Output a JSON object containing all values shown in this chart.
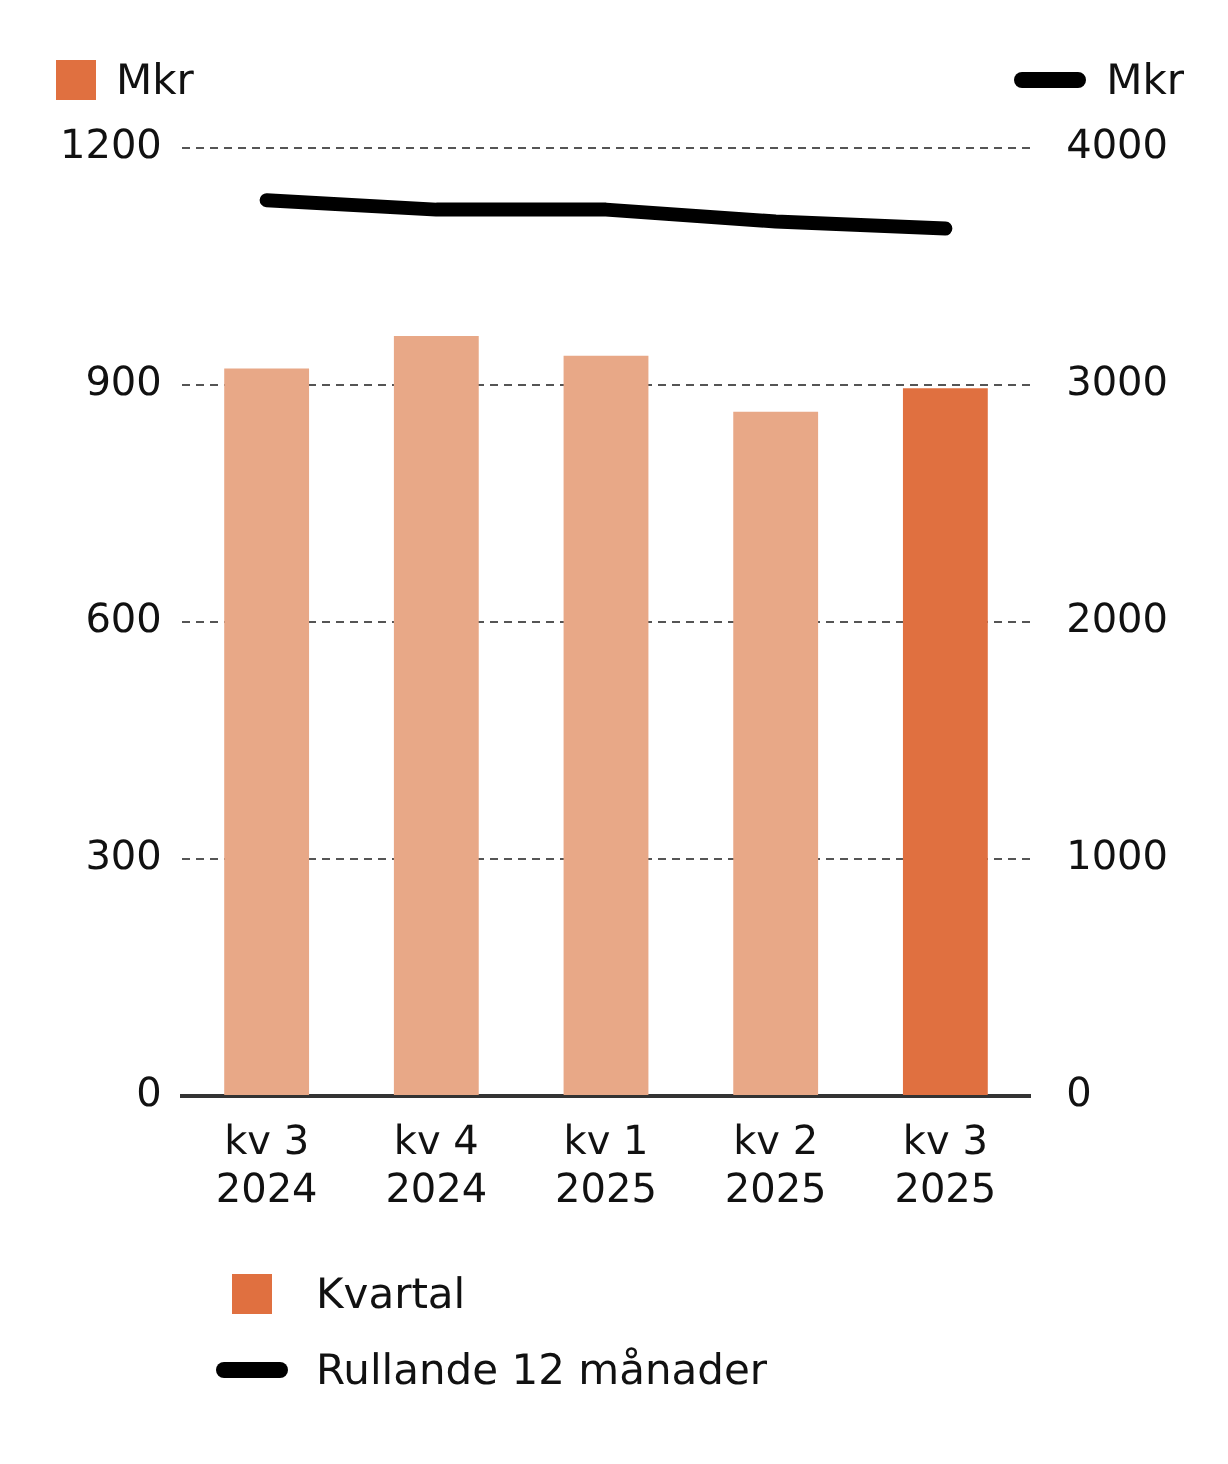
{
  "chart_data": {
    "type": "bar",
    "ylabel": "Mkr",
    "y2label": "Mkr",
    "categories": [
      "kv 3 2024",
      "kv 4 2024",
      "kv 1 2025",
      "kv 2 2025",
      "kv 3 2025"
    ],
    "series": [
      {
        "name": "Kvartal",
        "color": "#e07040",
        "colors": [
          "#e8a887",
          "#e8a887",
          "#e8a887",
          "#e8a887",
          "#e07040"
        ],
        "values": [
          921,
          962,
          937,
          866,
          896
        ]
      },
      {
        "name": "Rullande 12 månader",
        "type": "line",
        "axis": "y2",
        "color": "#000000",
        "values": [
          3780,
          3740,
          3740,
          3690,
          3660
        ]
      }
    ],
    "ylim": [
      0,
      1200
    ],
    "yticks": [
      0,
      300,
      600,
      900,
      1200
    ],
    "y2lim": [
      0,
      4000
    ],
    "y2ticks": [
      0,
      1000,
      2000,
      3000,
      4000
    ],
    "grid": "y",
    "legend": "bottom left",
    "marker": "none",
    "line_style": "solid"
  }
}
